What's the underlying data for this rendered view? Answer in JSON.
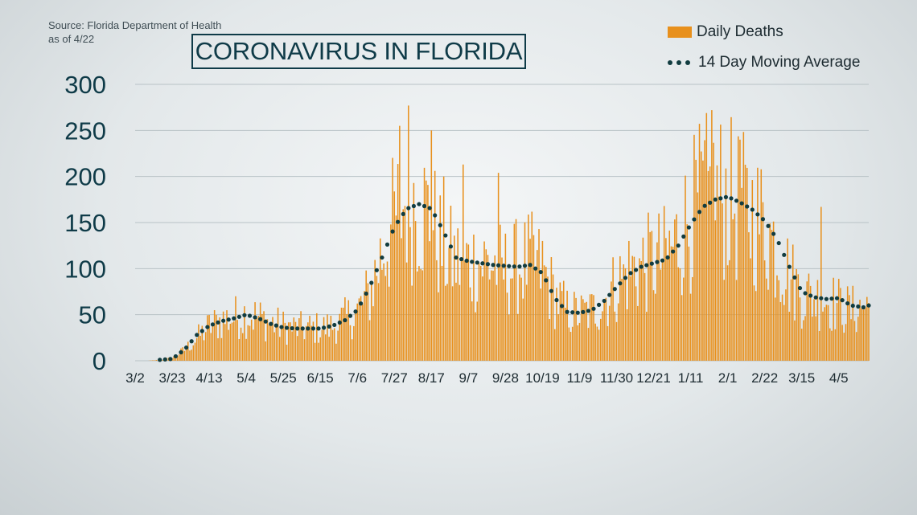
{
  "source_lines": [
    "Source: Florida Department of Health",
    "as of 4/22"
  ],
  "title": "CORONAVIRUS IN FLORIDA",
  "legend": {
    "bars": "Daily Deaths",
    "line": "14 Day Moving Average"
  },
  "colors": {
    "bars": "#e8901c",
    "line": "#113c40",
    "grid": "#b8c2c6",
    "text": "#0f3b48"
  },
  "chart_data": {
    "type": "bar",
    "title": "CORONAVIRUS IN FLORIDA",
    "xlabel": "",
    "ylabel": "",
    "ylim": [
      0,
      300
    ],
    "yticks": [
      0,
      50,
      100,
      150,
      200,
      250,
      300
    ],
    "grid": true,
    "legend_position": "top-right",
    "x_tick_labels": [
      "3/2",
      "3/23",
      "4/13",
      "5/4",
      "5/25",
      "6/15",
      "7/6",
      "7/27",
      "8/17",
      "9/7",
      "9/28",
      "10/19",
      "11/9",
      "11/30",
      "12/21",
      "1/11",
      "2/1",
      "2/22",
      "3/15",
      "4/5"
    ],
    "x_tick_day_index": [
      0,
      21,
      42,
      63,
      84,
      105,
      126,
      147,
      168,
      189,
      210,
      231,
      252,
      273,
      294,
      315,
      336,
      357,
      378,
      399
    ],
    "x_range_days": [
      0,
      416
    ],
    "series": [
      {
        "name": "Daily Deaths",
        "type": "bar",
        "weekly_anchors": [
          [
            0,
            0
          ],
          [
            7,
            0
          ],
          [
            14,
            1
          ],
          [
            21,
            3
          ],
          [
            28,
            12
          ],
          [
            35,
            25
          ],
          [
            42,
            38
          ],
          [
            49,
            45
          ],
          [
            56,
            48
          ],
          [
            63,
            52
          ],
          [
            70,
            48
          ],
          [
            77,
            42
          ],
          [
            84,
            38
          ],
          [
            91,
            36
          ],
          [
            98,
            36
          ],
          [
            105,
            36
          ],
          [
            112,
            38
          ],
          [
            119,
            46
          ],
          [
            126,
            55
          ],
          [
            133,
            75
          ],
          [
            140,
            120
          ],
          [
            147,
            155
          ],
          [
            154,
            180
          ],
          [
            161,
            175
          ],
          [
            168,
            155
          ],
          [
            175,
            120
          ],
          [
            182,
            110
          ],
          [
            189,
            108
          ],
          [
            196,
            110
          ],
          [
            203,
            108
          ],
          [
            210,
            100
          ],
          [
            217,
            105
          ],
          [
            224,
            110
          ],
          [
            231,
            100
          ],
          [
            238,
            72
          ],
          [
            245,
            55
          ],
          [
            252,
            52
          ],
          [
            259,
            55
          ],
          [
            266,
            68
          ],
          [
            273,
            85
          ],
          [
            280,
            100
          ],
          [
            287,
            105
          ],
          [
            294,
            110
          ],
          [
            301,
            115
          ],
          [
            308,
            135
          ],
          [
            315,
            160
          ],
          [
            322,
            180
          ],
          [
            329,
            185
          ],
          [
            336,
            180
          ],
          [
            343,
            170
          ],
          [
            350,
            162
          ],
          [
            357,
            150
          ],
          [
            364,
            125
          ],
          [
            371,
            95
          ],
          [
            378,
            75
          ],
          [
            385,
            70
          ],
          [
            392,
            68
          ],
          [
            399,
            62
          ],
          [
            406,
            55
          ],
          [
            413,
            60
          ],
          [
            416,
            62
          ]
        ],
        "notable_peaks": [
          [
            150,
            255
          ],
          [
            155,
            277
          ],
          [
            168,
            250
          ],
          [
            175,
            200
          ],
          [
            186,
            213
          ],
          [
            206,
            204
          ],
          [
            231,
            130
          ],
          [
            327,
            272
          ],
          [
            343,
            240
          ],
          [
            389,
            167
          ]
        ]
      },
      {
        "name": "14 Day Moving Average",
        "type": "line-dotted",
        "weekly_anchors": [
          [
            0,
            0
          ],
          [
            7,
            0
          ],
          [
            14,
            1
          ],
          [
            21,
            2
          ],
          [
            28,
            12
          ],
          [
            35,
            28
          ],
          [
            42,
            38
          ],
          [
            49,
            43
          ],
          [
            56,
            46
          ],
          [
            63,
            50
          ],
          [
            70,
            46
          ],
          [
            77,
            40
          ],
          [
            84,
            36
          ],
          [
            91,
            35
          ],
          [
            98,
            35
          ],
          [
            105,
            35
          ],
          [
            112,
            38
          ],
          [
            119,
            44
          ],
          [
            126,
            55
          ],
          [
            133,
            80
          ],
          [
            140,
            112
          ],
          [
            147,
            145
          ],
          [
            154,
            165
          ],
          [
            161,
            170
          ],
          [
            168,
            165
          ],
          [
            175,
            140
          ],
          [
            182,
            112
          ],
          [
            189,
            108
          ],
          [
            196,
            106
          ],
          [
            203,
            104
          ],
          [
            210,
            103
          ],
          [
            217,
            102
          ],
          [
            224,
            104
          ],
          [
            231,
            95
          ],
          [
            238,
            68
          ],
          [
            245,
            53
          ],
          [
            252,
            52
          ],
          [
            259,
            55
          ],
          [
            266,
            65
          ],
          [
            273,
            80
          ],
          [
            280,
            94
          ],
          [
            287,
            102
          ],
          [
            294,
            106
          ],
          [
            301,
            110
          ],
          [
            308,
            125
          ],
          [
            315,
            148
          ],
          [
            322,
            167
          ],
          [
            329,
            175
          ],
          [
            336,
            178
          ],
          [
            343,
            172
          ],
          [
            350,
            164
          ],
          [
            357,
            152
          ],
          [
            364,
            132
          ],
          [
            371,
            102
          ],
          [
            378,
            75
          ],
          [
            385,
            69
          ],
          [
            392,
            67
          ],
          [
            399,
            68
          ],
          [
            406,
            60
          ],
          [
            413,
            58
          ],
          [
            416,
            60
          ]
        ]
      }
    ]
  }
}
